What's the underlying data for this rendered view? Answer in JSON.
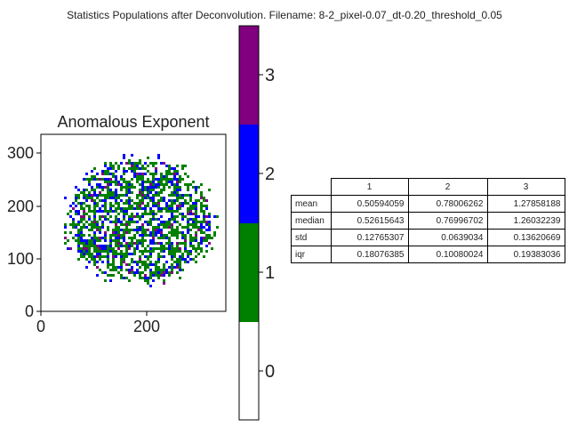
{
  "figure_title": "Statistics Populations after Deconvolution. Filename: 8-2_pixel-0.07_dt-0.20_threshold_0.05",
  "chart_data": [
    {
      "type": "heatmap",
      "title": "Anomalous Exponent",
      "xlim": [
        0,
        350
      ],
      "ylim": [
        0,
        335
      ],
      "x_ticks": [
        "0",
        "200"
      ],
      "y_ticks": [
        "0",
        "100",
        "200",
        "300"
      ],
      "description_colors": {
        "0": "#ffffff",
        "1": "#008000",
        "2": "#0000ff",
        "3": "#800080"
      }
    },
    {
      "type": "colorbar",
      "levels": [
        0,
        1,
        2,
        3
      ],
      "tick_labels": [
        "0",
        "1",
        "2",
        "3"
      ],
      "colors": [
        "#ffffff",
        "#008000",
        "#0000ff",
        "#800080"
      ],
      "range": [
        -0.5,
        3.5
      ]
    },
    {
      "type": "table",
      "columns": [
        "1",
        "2",
        "3"
      ],
      "rows": [
        {
          "label": "mean",
          "values": [
            "0.50594059",
            "0.78006262",
            "1.27858188"
          ]
        },
        {
          "label": "median",
          "values": [
            "0.52615643",
            "0.76996702",
            "1.26032239"
          ]
        },
        {
          "label": "std",
          "values": [
            "0.12765307",
            "0.0639034",
            "0.13620669"
          ]
        },
        {
          "label": "iqr",
          "values": [
            "0.18076385",
            "0.10080024",
            "0.19383036"
          ]
        }
      ]
    }
  ]
}
